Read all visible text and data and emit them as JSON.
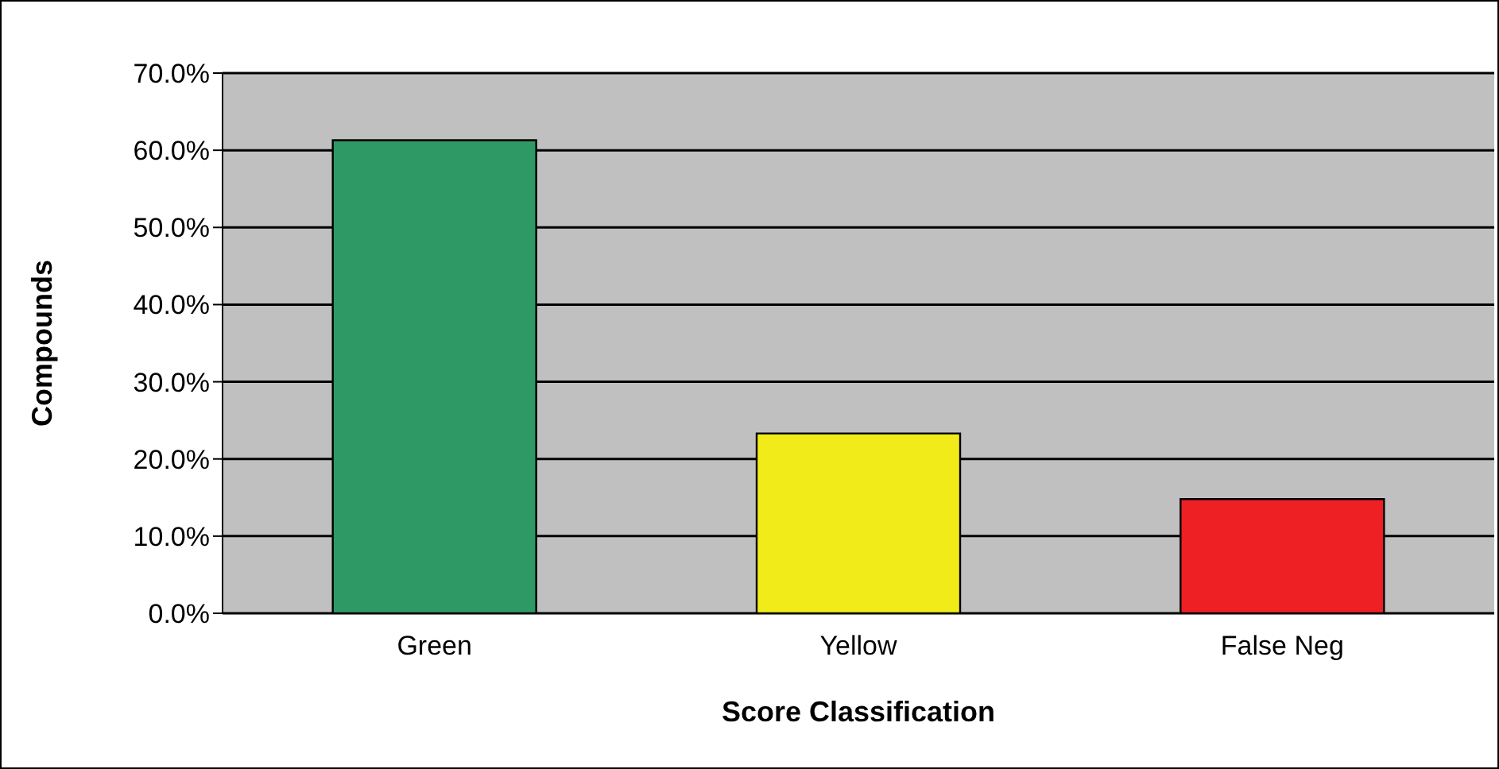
{
  "chart_data": {
    "type": "bar",
    "xlabel": "Score Classification",
    "ylabel": "Compounds",
    "categories": [
      "Green",
      "Yellow",
      "False Neg"
    ],
    "values": [
      61.3,
      23.3,
      14.8
    ],
    "colors": [
      "#2f9966",
      "#f2eb1a",
      "#ee2024"
    ],
    "ylim": [
      0,
      70
    ],
    "yticks": [
      {
        "value": 0,
        "label": "0.0%"
      },
      {
        "value": 10,
        "label": "10.0%"
      },
      {
        "value": 20,
        "label": "20.0%"
      },
      {
        "value": 30,
        "label": "30.0%"
      },
      {
        "value": 40,
        "label": "40.0%"
      },
      {
        "value": 50,
        "label": "50.0%"
      },
      {
        "value": 60,
        "label": "60.0%"
      },
      {
        "value": 70,
        "label": "70.0%"
      }
    ],
    "grid": "y"
  }
}
